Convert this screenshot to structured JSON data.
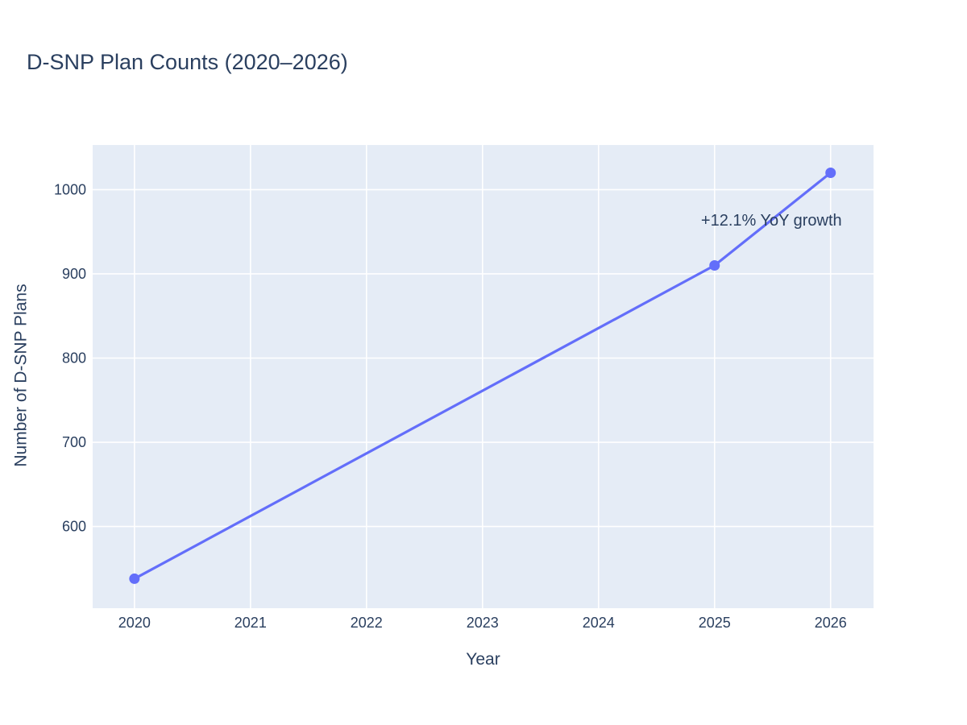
{
  "page": {
    "background": "#ffffff"
  },
  "chart_data": {
    "type": "line",
    "title": "D-SNP Plan Counts (2020–2026)",
    "xlabel": "Year",
    "ylabel": "Number of D-SNP Plans",
    "series": [
      {
        "name": "D-SNP Plan Counts",
        "mode": "lines+markers",
        "x": [
          2020,
          2025,
          2026
        ],
        "y": [
          538,
          910,
          1020
        ],
        "color": "#636efa"
      }
    ],
    "annotations": [
      {
        "text": "+12.1% YoY growth",
        "x": 2025.49,
        "y": 964
      }
    ],
    "x_ticks": [
      2020,
      2021,
      2022,
      2023,
      2024,
      2025,
      2026
    ],
    "y_ticks": [
      600,
      700,
      800,
      900,
      1000
    ],
    "x_range": [
      2019.64,
      2026.37
    ],
    "y_range": [
      503,
      1053
    ],
    "grid": true,
    "legend_position": "none",
    "colors": {
      "plot_background": "#e5ecf6",
      "grid": "#ffffff",
      "text": "#2a3f5f",
      "paper": "#ffffff"
    }
  }
}
